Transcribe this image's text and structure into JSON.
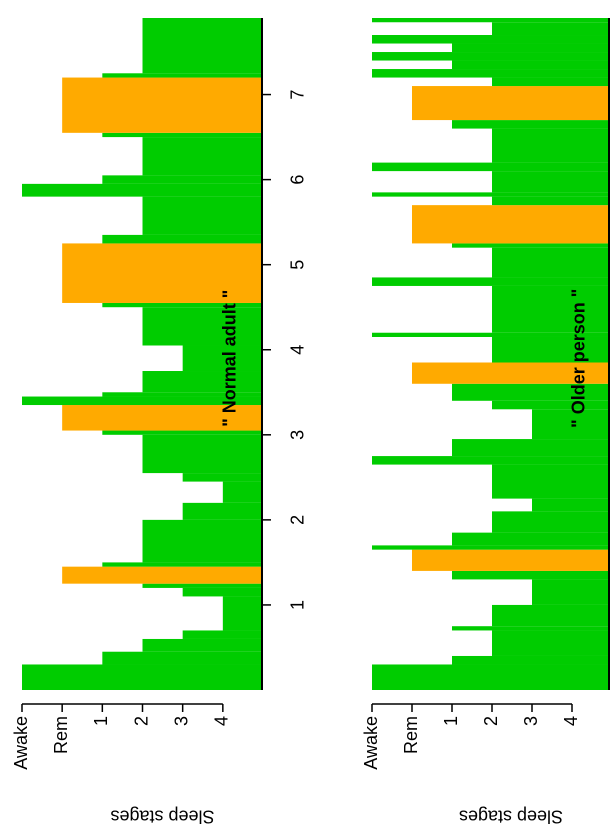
{
  "chart_data": [
    {
      "type": "step",
      "annotation": "\" Normal adult \"",
      "ylabel": "Sleep stages",
      "color": "#00cc00",
      "highlight": {
        "value": 1,
        "color": "#ffaa00"
      },
      "breaks": [
        0,
        0.3,
        0.45,
        0.6,
        0.7,
        1.1,
        1.2,
        1.25,
        1.45,
        1.5,
        2.0,
        2.2,
        2.45,
        2.55,
        3.0,
        3.05,
        3.35,
        3.45,
        3.5,
        3.75,
        4.05,
        4.5,
        4.55,
        5.25,
        5.35,
        5.8,
        5.95,
        6.05,
        6.5,
        6.55,
        7.2,
        7.25,
        7.9
      ],
      "stages": [
        0,
        2,
        3,
        4,
        5,
        4,
        3,
        1,
        2,
        3,
        4,
        5,
        4,
        3,
        2,
        1,
        0,
        2,
        3,
        4,
        3,
        2,
        1,
        2,
        3,
        0,
        2,
        3,
        2,
        1,
        2,
        3
      ],
      "xlim": [
        0,
        7.9
      ],
      "xticks": [
        1,
        2,
        3,
        4,
        5,
        6,
        7
      ],
      "ylim": [
        0,
        6
      ],
      "yticks": [
        {
          "value": 0,
          "label": "Awake"
        },
        {
          "value": 1,
          "label": "Rem"
        },
        {
          "value": 2,
          "label": "1"
        },
        {
          "value": 3,
          "label": "2"
        },
        {
          "value": 4,
          "label": "3"
        },
        {
          "value": 5,
          "label": "4"
        }
      ]
    },
    {
      "type": "step",
      "annotation": "\" Older person \"",
      "ylabel": "Sleep stages",
      "color": "#00cc00",
      "highlight": {
        "value": 1,
        "color": "#ffaa00"
      },
      "breaks": [
        0,
        0.3,
        0.4,
        0.7,
        0.75,
        1.0,
        1.3,
        1.4,
        1.65,
        1.7,
        1.85,
        2.1,
        2.25,
        2.65,
        2.75,
        2.95,
        3.3,
        3.4,
        3.6,
        3.85,
        4.15,
        4.2,
        4.75,
        4.85,
        5.2,
        5.25,
        5.7,
        5.8,
        5.85,
        6.1,
        6.2,
        6.6,
        6.7,
        7.1,
        7.2,
        7.3,
        7.4,
        7.5,
        7.6,
        7.7,
        7.85,
        7.9
      ],
      "stages": [
        0,
        2,
        3,
        2,
        3,
        4,
        2,
        1,
        0,
        2,
        3,
        4,
        3,
        0,
        2,
        4,
        3,
        2,
        1,
        3,
        0,
        3,
        0,
        3,
        2,
        1,
        3,
        0,
        3,
        0,
        3,
        2,
        1,
        3,
        0,
        2,
        0,
        2,
        0,
        3,
        0
      ],
      "xlim": [
        0,
        7.9
      ],
      "xticks": [
        1,
        2,
        3,
        4,
        5,
        6,
        7
      ],
      "ylim": [
        0,
        5.95
      ],
      "yticks": [
        {
          "value": 0,
          "label": "Awake"
        },
        {
          "value": 1,
          "label": "Rem"
        },
        {
          "value": 2,
          "label": "1"
        },
        {
          "value": 3,
          "label": "2"
        },
        {
          "value": 4,
          "label": "3"
        },
        {
          "value": 5,
          "label": "4"
        }
      ]
    }
  ]
}
